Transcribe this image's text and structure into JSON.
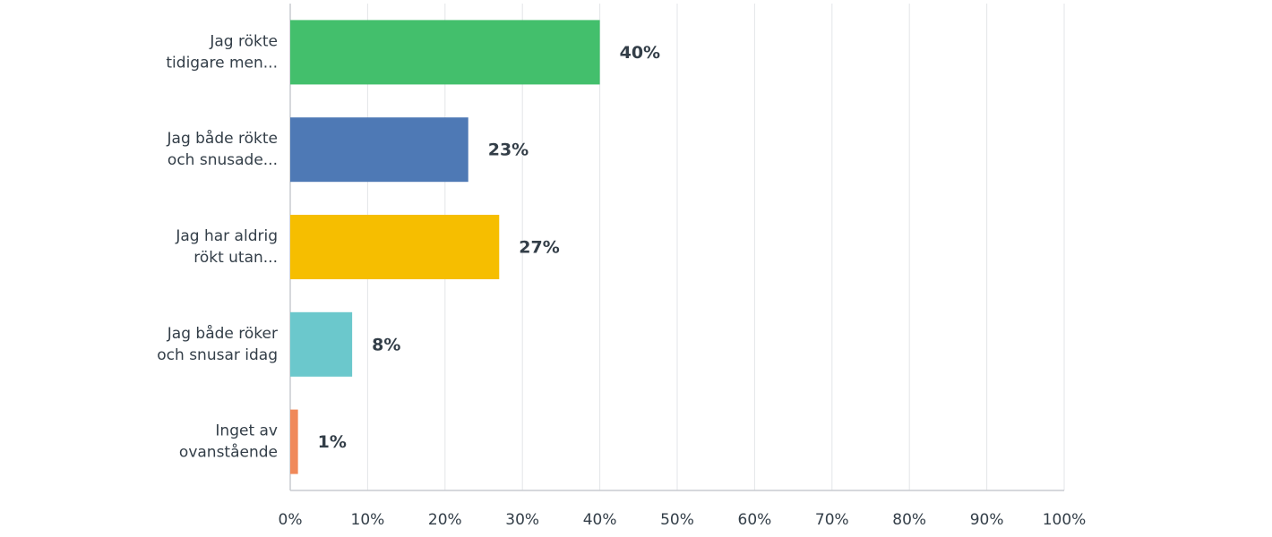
{
  "chart_data": {
    "type": "bar",
    "orientation": "horizontal",
    "categories": [
      [
        "Jag rökte",
        "tidigare men..."
      ],
      [
        "Jag både rökte",
        "och snusade..."
      ],
      [
        "Jag har aldrig",
        "rökt utan..."
      ],
      [
        "Jag både röker",
        "och snusar idag"
      ],
      [
        "Inget av",
        "ovanstående"
      ]
    ],
    "values": [
      40,
      23,
      27,
      8,
      1
    ],
    "value_labels": [
      "40%",
      "23%",
      "27%",
      "8%",
      "1%"
    ],
    "colors": [
      "#43bf6c",
      "#4e79b5",
      "#f6be00",
      "#6bc8cc",
      "#f0895a"
    ],
    "xlim": [
      0,
      100
    ],
    "xticks": [
      {
        "value": 0,
        "label": "0%"
      },
      {
        "value": 10,
        "label": "10%"
      },
      {
        "value": 20,
        "label": "20%"
      },
      {
        "value": 30,
        "label": "30%"
      },
      {
        "value": 40,
        "label": "40%"
      },
      {
        "value": 50,
        "label": "50%"
      },
      {
        "value": 60,
        "label": "60%"
      },
      {
        "value": 70,
        "label": "70%"
      },
      {
        "value": 80,
        "label": "80%"
      },
      {
        "value": 90,
        "label": "90%"
      },
      {
        "value": 100,
        "label": "100%"
      }
    ],
    "grid": true
  }
}
